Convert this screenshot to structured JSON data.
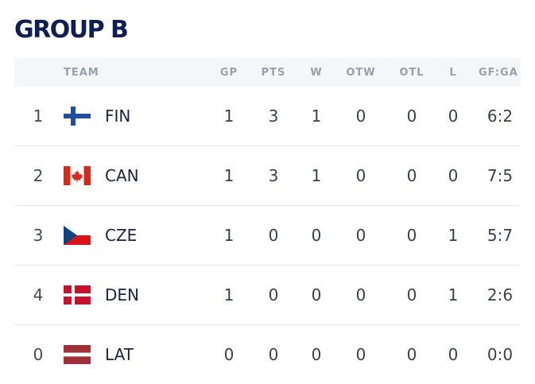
{
  "group": {
    "title": "GROUP B"
  },
  "columns": {
    "team": "TEAM",
    "gp": "GP",
    "pts": "PTS",
    "w": "W",
    "otw": "OTW",
    "otl": "OTL",
    "l": "L",
    "gfga": "GF:GA"
  },
  "rows": [
    {
      "rank": "1",
      "flag": "finland-flag-icon",
      "team": "FIN",
      "gp": "1",
      "pts": "3",
      "w": "1",
      "otw": "0",
      "otl": "0",
      "l": "0",
      "gfga": "6:2"
    },
    {
      "rank": "2",
      "flag": "canada-flag-icon",
      "team": "CAN",
      "gp": "1",
      "pts": "3",
      "w": "1",
      "otw": "0",
      "otl": "0",
      "l": "0",
      "gfga": "7:5"
    },
    {
      "rank": "3",
      "flag": "czech-flag-icon",
      "team": "CZE",
      "gp": "1",
      "pts": "0",
      "w": "0",
      "otw": "0",
      "otl": "0",
      "l": "1",
      "gfga": "5:7"
    },
    {
      "rank": "4",
      "flag": "denmark-flag-icon",
      "team": "DEN",
      "gp": "1",
      "pts": "0",
      "w": "0",
      "otw": "0",
      "otl": "0",
      "l": "1",
      "gfga": "2:6"
    },
    {
      "rank": "0",
      "flag": "latvia-flag-icon",
      "team": "LAT",
      "gp": "0",
      "pts": "0",
      "w": "0",
      "otw": "0",
      "otl": "0",
      "l": "0",
      "gfga": "0:0"
    }
  ],
  "colors": {
    "title": "#0f1f56",
    "header_bg": "#f5f6f8",
    "header_text": "#98a0ab",
    "finland_blue": "#1f4fa0",
    "canada_red": "#d52b1e",
    "czech_blue": "#11457e",
    "czech_red": "#d7141a",
    "denmark_red": "#c8102e",
    "latvia_carmine": "#9e3039"
  }
}
